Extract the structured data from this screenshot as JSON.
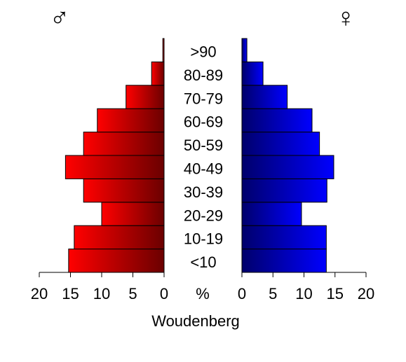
{
  "chart_data": {
    "type": "pyramid",
    "title": "Woudenberg",
    "xlabel": "%",
    "categories": [
      "<10",
      "10-19",
      "20-29",
      "30-39",
      "40-49",
      "50-59",
      "60-69",
      "70-79",
      "80-89",
      ">90"
    ],
    "series": [
      {
        "name": "♂",
        "colors": [
          "#ff0000",
          "#6b0000"
        ],
        "values": [
          15.3,
          14.4,
          10.0,
          12.9,
          15.8,
          12.9,
          10.7,
          6.1,
          2.0,
          0.2
        ]
      },
      {
        "name": "♀",
        "colors": [
          "#00006b",
          "#0000ff"
        ],
        "values": [
          13.6,
          13.6,
          9.6,
          13.7,
          14.8,
          12.5,
          11.3,
          7.3,
          3.4,
          0.8
        ]
      }
    ],
    "xlim": [
      0,
      20
    ],
    "xticks": [
      0,
      5,
      10,
      15,
      20
    ]
  }
}
